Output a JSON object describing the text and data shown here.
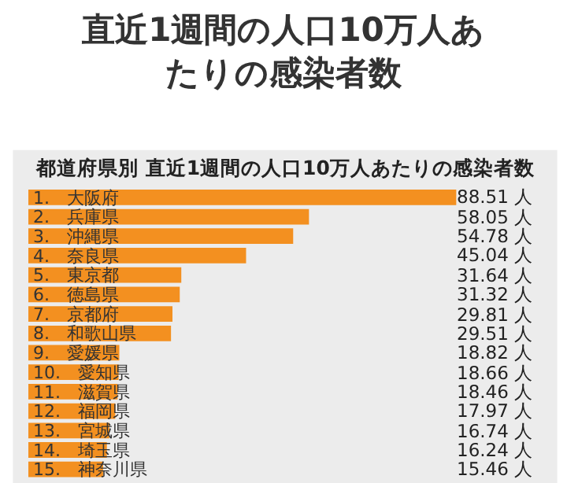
{
  "chart_data": {
    "type": "bar",
    "orientation": "horizontal",
    "title": "直近1週間の人口10万人あたりの感染者数",
    "subtitle": "都道府県別 直近1週間の人口10万人あたりの感染者数",
    "categories": [
      "1.　大阪府",
      "2.　兵庫県",
      "3.　沖縄県",
      "4.　奈良県",
      "5.　東京都",
      "6.　徳島県",
      "7.　京都府",
      "8.　和歌山県",
      "9.　愛媛県",
      "10.　愛知県",
      "11.　滋賀県",
      "12.　福岡県",
      "13.　宮城県",
      "14.　埼玉県",
      "15.　神奈川県"
    ],
    "values": [
      88.51,
      58.05,
      54.78,
      45.04,
      31.64,
      31.32,
      29.81,
      29.51,
      18.82,
      18.66,
      18.46,
      17.97,
      16.74,
      16.24,
      15.46
    ],
    "value_labels": [
      "88.51 人",
      "58.05 人",
      "54.78 人",
      "45.04 人",
      "31.64 人",
      "31.32 人",
      "29.81 人",
      "29.51 人",
      "18.82 人",
      "18.66 人",
      "18.46 人",
      "17.97 人",
      "16.74 人",
      "16.24 人",
      "15.46 人"
    ],
    "color": "#f39020",
    "grid": false,
    "legend": false
  }
}
